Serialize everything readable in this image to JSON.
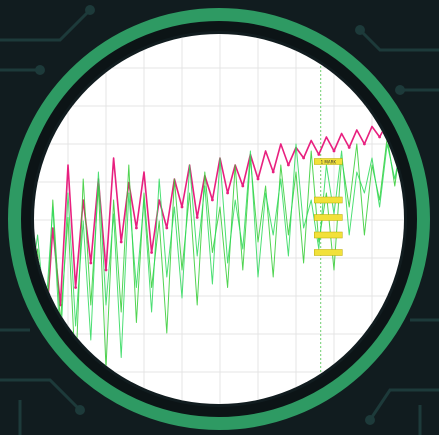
{
  "image": {
    "background_color": "#111c1f",
    "trace_color": "#1d3a3a",
    "ring_color": "#2e9a63",
    "inner_ring_color": "#0c1416",
    "plot_bg": "#ffffff",
    "grid_color": "#e4e4e4",
    "marker_line_color": "#6fcf6f",
    "marker_tag_text": "1 MARK"
  },
  "chart_data": {
    "type": "line",
    "title": "",
    "xlabel": "",
    "ylabel": "",
    "grid": true,
    "legend": "none",
    "xlim": [
      0,
      100
    ],
    "ylim": [
      0,
      100
    ],
    "x": [
      0,
      2,
      4,
      6,
      8,
      10,
      12,
      14,
      16,
      18,
      20,
      22,
      24,
      26,
      28,
      30,
      32,
      34,
      36,
      38,
      40,
      42,
      44,
      46,
      48,
      50,
      52,
      54,
      56,
      58,
      60,
      62,
      64,
      66,
      68,
      70,
      72,
      74,
      76,
      78,
      80,
      82,
      84,
      86,
      88,
      90,
      92,
      94,
      96,
      98,
      100
    ],
    "series": [
      {
        "color": "#e8207f",
        "values": [
          38,
          44,
          20,
          52,
          30,
          70,
          35,
          60,
          42,
          66,
          40,
          72,
          48,
          65,
          52,
          68,
          45,
          60,
          52,
          66,
          58,
          70,
          55,
          67,
          60,
          72,
          62,
          70,
          64,
          73,
          66,
          74,
          68,
          76,
          70,
          75,
          72,
          77,
          73,
          78,
          74,
          79,
          75,
          80,
          76,
          81,
          78,
          82,
          80,
          84,
          85
        ]
      },
      {
        "color": "#33cc33",
        "values": [
          30,
          46,
          15,
          60,
          25,
          55,
          10,
          66,
          30,
          64,
          12,
          60,
          28,
          70,
          25,
          62,
          35,
          54,
          22,
          66,
          40,
          62,
          30,
          68,
          45,
          58,
          35,
          70,
          40,
          72,
          48,
          64,
          38,
          70,
          50,
          68,
          42,
          74,
          48,
          62,
          40,
          72,
          58,
          76,
          50,
          70,
          60,
          78,
          64,
          80,
          82
        ]
      },
      {
        "color": "#2bd95a",
        "values": [
          34,
          50,
          26,
          58,
          18,
          62,
          24,
          54,
          20,
          68,
          30,
          56,
          15,
          62,
          35,
          60,
          28,
          66,
          38,
          58,
          32,
          70,
          44,
          64,
          36,
          72,
          42,
          60,
          46,
          74,
          38,
          62,
          50,
          66,
          44,
          76,
          52,
          60,
          46,
          70,
          56,
          74,
          50,
          68,
          62,
          72,
          58,
          76,
          66,
          78,
          80
        ]
      }
    ],
    "annotations": [
      {
        "label": "1 MARK",
        "x": 78.5,
        "y": 71
      },
      {
        "label": "",
        "x": 78.5,
        "y": 60
      },
      {
        "label": "",
        "x": 78.5,
        "y": 55
      },
      {
        "label": "",
        "x": 78.5,
        "y": 50
      },
      {
        "label": "",
        "x": 78.5,
        "y": 45
      }
    ],
    "marker_x": 76.5
  }
}
